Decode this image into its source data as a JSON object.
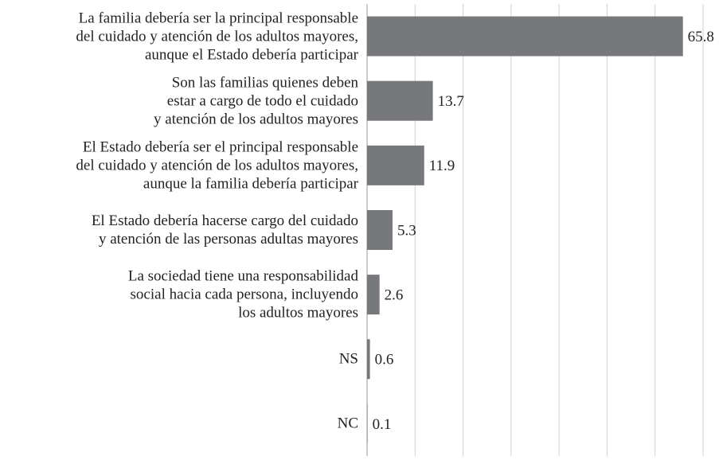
{
  "chart_data": {
    "type": "barh",
    "categories": [
      "La familia debería ser la principal responsable\ndel cuidado y atención de los adultos mayores,\naunque el Estado debería participar",
      "Son las familias quienes deben\nestar a cargo de todo el cuidado\ny atención de los adultos mayores",
      "El Estado debería ser el principal responsable\ndel cuidado y atención de los adultos mayores,\naunque la familia debería participar",
      "El Estado debería hacerse cargo del cuidado\ny atención de las personas adultas mayores",
      "La sociedad tiene una responsabilidad\nsocial hacia cada persona, incluyendo\nlos adultos mayores",
      "NS",
      "NC"
    ],
    "values": [
      65.8,
      13.7,
      11.9,
      5.3,
      2.6,
      0.6,
      0.1
    ],
    "color": "#77787b",
    "xlim": [
      0,
      70
    ],
    "xticks": [
      0,
      10,
      20,
      30,
      40,
      50,
      60,
      70
    ],
    "grid": true
  }
}
